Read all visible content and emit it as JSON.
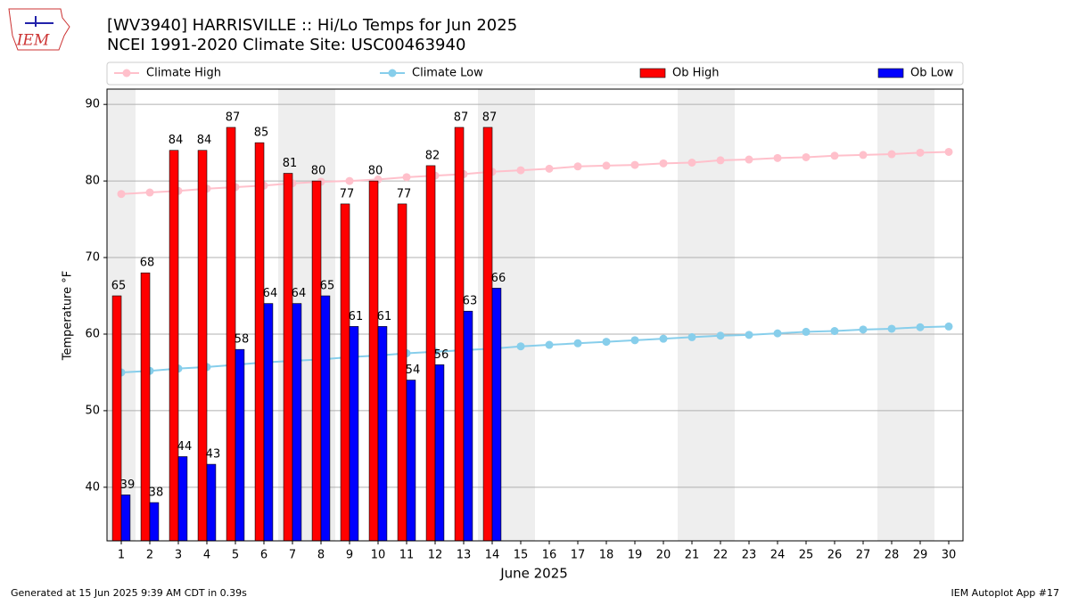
{
  "chart_data": {
    "type": "bar",
    "title": "[WV3940] HARRISVILLE :: Hi/Lo Temps for Jun 2025",
    "subtitle": "NCEI 1991-2020 Climate Site: USC00463940",
    "x_label": "June 2025",
    "y_label": "Temperature °F",
    "footer_left": "Generated at 15 Jun 2025 9:39 AM CDT in 0.39s",
    "footer_right": "IEM Autoplot App #17",
    "logo_text": "IEM",
    "x": [
      1,
      2,
      3,
      4,
      5,
      6,
      7,
      8,
      9,
      10,
      11,
      12,
      13,
      14,
      15,
      16,
      17,
      18,
      19,
      20,
      21,
      22,
      23,
      24,
      25,
      26,
      27,
      28,
      29,
      30
    ],
    "xlim": [
      0.5,
      30.5
    ],
    "xticks": [
      1,
      2,
      3,
      4,
      5,
      6,
      7,
      8,
      9,
      10,
      11,
      12,
      13,
      14,
      15,
      16,
      17,
      18,
      19,
      20,
      21,
      22,
      23,
      24,
      25,
      26,
      27,
      28,
      29,
      30
    ],
    "ylim": [
      33,
      92
    ],
    "yticks": [
      40,
      50,
      60,
      70,
      80,
      90
    ],
    "grid": true,
    "legend": "top",
    "series": [
      {
        "name": "Climate High",
        "type": "line",
        "color": "#ffc0cb",
        "values": [
          78.3,
          78.5,
          78.7,
          79.0,
          79.2,
          79.4,
          79.7,
          79.9,
          80.0,
          80.2,
          80.5,
          80.7,
          80.9,
          81.2,
          81.4,
          81.6,
          81.9,
          82.0,
          82.1,
          82.3,
          82.4,
          82.7,
          82.8,
          83.0,
          83.1,
          83.3,
          83.4,
          83.5,
          83.7,
          83.8
        ]
      },
      {
        "name": "Climate Low",
        "type": "line",
        "color": "#87ceeb",
        "values": [
          55.0,
          55.2,
          55.5,
          55.7,
          56.0,
          56.3,
          56.5,
          56.7,
          57.0,
          57.2,
          57.5,
          57.7,
          57.9,
          58.1,
          58.4,
          58.6,
          58.8,
          59.0,
          59.2,
          59.4,
          59.6,
          59.8,
          59.9,
          60.1,
          60.3,
          60.4,
          60.6,
          60.7,
          60.9,
          61.0
        ]
      },
      {
        "name": "Ob High",
        "type": "bar",
        "color": "#ff0000",
        "values": [
          65,
          68,
          84,
          84,
          87,
          85,
          81,
          80,
          77,
          80,
          77,
          82,
          87,
          87,
          null,
          null,
          null,
          null,
          null,
          null,
          null,
          null,
          null,
          null,
          null,
          null,
          null,
          null,
          null,
          null
        ]
      },
      {
        "name": "Ob Low",
        "type": "bar",
        "color": "#0000ff",
        "values": [
          39,
          38,
          44,
          43,
          58,
          64,
          64,
          65,
          61,
          61,
          54,
          56,
          63,
          66,
          null,
          null,
          null,
          null,
          null,
          null,
          null,
          null,
          null,
          null,
          null,
          null,
          null,
          null,
          null,
          null
        ]
      }
    ]
  }
}
